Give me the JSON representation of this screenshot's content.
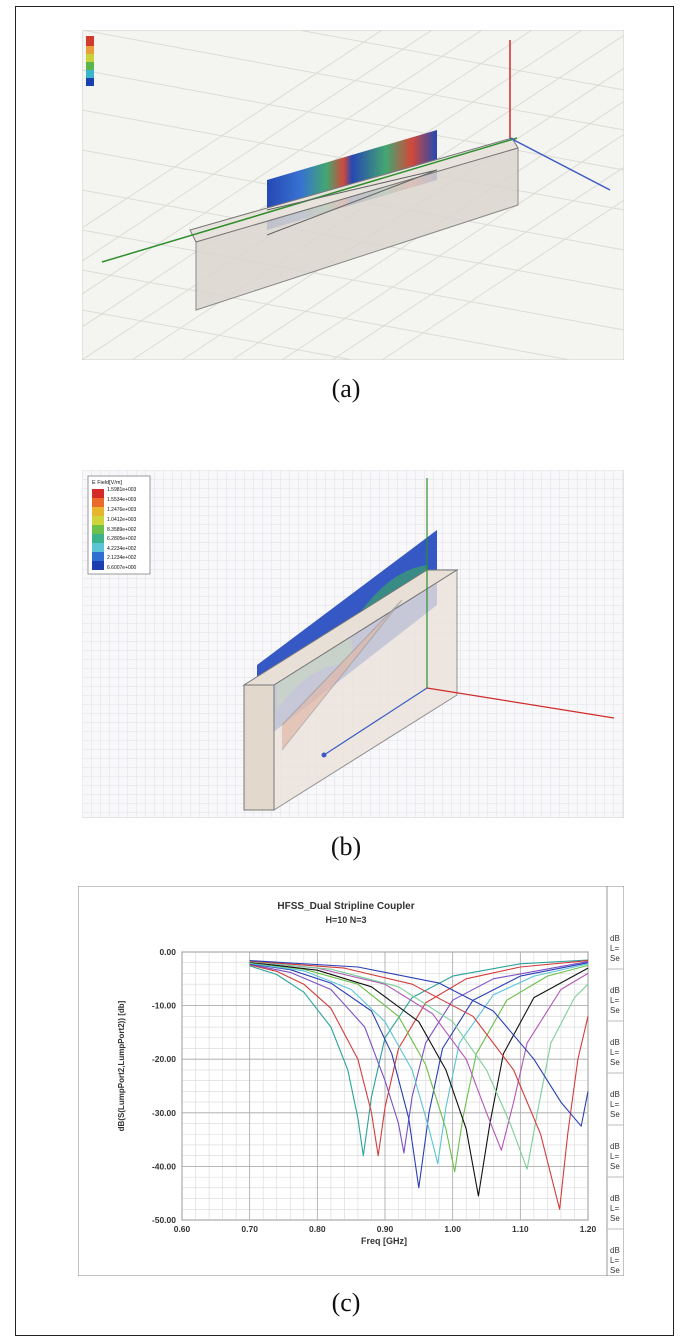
{
  "captions": [
    "(a)",
    "(b)",
    "(c)"
  ],
  "panel_b": {
    "legend_title": "E Field[V/m]",
    "legend_values": [
      "1.5981e+003",
      "1.5534e+003",
      "1.2476e+003",
      "1.0412e+003",
      "8.3589e+002",
      "6.2805e+002",
      "4.2234e+002",
      "2.1234e+002",
      "6.6007e+000"
    ]
  },
  "chart_data": {
    "type": "line",
    "title": "HFSS_Dual Stripline Coupler",
    "subtitle": "H=10 N=3",
    "xlabel": "Freq [GHz]",
    "ylabel": "dB(S(LumpPort2,LumpPort2)) [db]",
    "xlim": [
      0.6,
      1.2
    ],
    "ylim": [
      -50,
      0
    ],
    "x_ticks": [
      "0.60",
      "0.70",
      "0.80",
      "0.90",
      "1.00",
      "1.10",
      "1.20"
    ],
    "y_ticks": [
      "0.00",
      "-10.00",
      "-20.00",
      "-30.00",
      "-40.00",
      "-50.00"
    ],
    "grid": true,
    "legend_tabs": [
      "dB",
      "L=",
      "Se"
    ],
    "series": [
      {
        "color": "#2aa39a",
        "values": [
          [
            0.7,
            -2.6
          ],
          [
            0.74,
            -4.2
          ],
          [
            0.78,
            -7.5
          ],
          [
            0.82,
            -14.0
          ],
          [
            0.845,
            -22.0
          ],
          [
            0.86,
            -31.0
          ],
          [
            0.868,
            -38.0
          ],
          [
            0.88,
            -27.0
          ],
          [
            0.9,
            -16.0
          ],
          [
            0.94,
            -8.5
          ],
          [
            1.0,
            -4.5
          ],
          [
            1.1,
            -2.2
          ],
          [
            1.2,
            -1.5
          ]
        ]
      },
      {
        "color": "#d43b3b",
        "values": [
          [
            0.7,
            -2.4
          ],
          [
            0.74,
            -3.6
          ],
          [
            0.78,
            -6.0
          ],
          [
            0.82,
            -10.5
          ],
          [
            0.86,
            -20.0
          ],
          [
            0.88,
            -30.0
          ],
          [
            0.89,
            -38.0
          ],
          [
            0.9,
            -29.0
          ],
          [
            0.92,
            -18.0
          ],
          [
            0.96,
            -9.5
          ],
          [
            1.02,
            -5.0
          ],
          [
            1.1,
            -2.8
          ],
          [
            1.2,
            -1.6
          ]
        ]
      },
      {
        "color": "#7a4fc4",
        "values": [
          [
            0.7,
            -2.3
          ],
          [
            0.76,
            -3.8
          ],
          [
            0.82,
            -7.0
          ],
          [
            0.87,
            -14.0
          ],
          [
            0.9,
            -24.0
          ],
          [
            0.92,
            -32.0
          ],
          [
            0.928,
            -37.5
          ],
          [
            0.94,
            -27.0
          ],
          [
            0.96,
            -17.0
          ],
          [
            1.0,
            -9.0
          ],
          [
            1.06,
            -5.0
          ],
          [
            1.2,
            -1.8
          ]
        ]
      },
      {
        "color": "#2b3fb5",
        "values": [
          [
            0.7,
            -2.2
          ],
          [
            0.76,
            -3.3
          ],
          [
            0.82,
            -5.8
          ],
          [
            0.88,
            -11.0
          ],
          [
            0.91,
            -19.0
          ],
          [
            0.935,
            -31.0
          ],
          [
            0.95,
            -44.0
          ],
          [
            0.965,
            -30.0
          ],
          [
            0.985,
            -18.0
          ],
          [
            1.03,
            -9.0
          ],
          [
            1.1,
            -4.5
          ],
          [
            1.2,
            -2.0
          ]
        ]
      },
      {
        "color": "#5bc4d6",
        "values": [
          [
            0.7,
            -2.1
          ],
          [
            0.78,
            -3.5
          ],
          [
            0.85,
            -7.0
          ],
          [
            0.9,
            -13.0
          ],
          [
            0.94,
            -22.0
          ],
          [
            0.965,
            -33.0
          ],
          [
            0.978,
            -39.5
          ],
          [
            0.99,
            -29.0
          ],
          [
            1.01,
            -17.0
          ],
          [
            1.06,
            -8.0
          ],
          [
            1.12,
            -4.5
          ],
          [
            1.2,
            -2.2
          ]
        ]
      },
      {
        "color": "#6cbf4a",
        "values": [
          [
            0.7,
            -2.0
          ],
          [
            0.78,
            -3.2
          ],
          [
            0.86,
            -6.0
          ],
          [
            0.92,
            -12.0
          ],
          [
            0.96,
            -21.0
          ],
          [
            0.99,
            -33.0
          ],
          [
            1.003,
            -41.0
          ],
          [
            1.015,
            -31.0
          ],
          [
            1.035,
            -19.0
          ],
          [
            1.08,
            -9.0
          ],
          [
            1.14,
            -4.5
          ],
          [
            1.2,
            -2.5
          ]
        ]
      },
      {
        "color": "#111111",
        "values": [
          [
            0.7,
            -1.9
          ],
          [
            0.8,
            -3.4
          ],
          [
            0.88,
            -6.5
          ],
          [
            0.95,
            -13.0
          ],
          [
            0.99,
            -22.0
          ],
          [
            1.02,
            -33.0
          ],
          [
            1.038,
            -45.5
          ],
          [
            1.055,
            -32.0
          ],
          [
            1.075,
            -19.0
          ],
          [
            1.12,
            -8.5
          ],
          [
            1.2,
            -3.0
          ]
        ]
      },
      {
        "color": "#b356b8",
        "values": [
          [
            0.7,
            -1.8
          ],
          [
            0.8,
            -3.0
          ],
          [
            0.9,
            -6.0
          ],
          [
            0.97,
            -11.5
          ],
          [
            1.02,
            -20.0
          ],
          [
            1.05,
            -30.0
          ],
          [
            1.072,
            -37.0
          ],
          [
            1.09,
            -28.0
          ],
          [
            1.11,
            -17.0
          ],
          [
            1.16,
            -7.0
          ],
          [
            1.2,
            -4.0
          ]
        ]
      },
      {
        "color": "#7dcf9a",
        "values": [
          [
            0.7,
            -1.8
          ],
          [
            0.82,
            -3.2
          ],
          [
            0.92,
            -6.5
          ],
          [
            1.0,
            -13.0
          ],
          [
            1.05,
            -22.0
          ],
          [
            1.085,
            -32.0
          ],
          [
            1.11,
            -40.5
          ],
          [
            1.125,
            -30.0
          ],
          [
            1.145,
            -17.0
          ],
          [
            1.18,
            -8.5
          ],
          [
            1.2,
            -6.0
          ]
        ]
      },
      {
        "color": "#d43b3b",
        "values": [
          [
            0.7,
            -1.7
          ],
          [
            0.84,
            -3.0
          ],
          [
            0.94,
            -6.0
          ],
          [
            1.03,
            -12.0
          ],
          [
            1.09,
            -22.0
          ],
          [
            1.13,
            -34.0
          ],
          [
            1.158,
            -48.0
          ],
          [
            1.17,
            -34.0
          ],
          [
            1.185,
            -20.0
          ],
          [
            1.2,
            -12.0
          ]
        ]
      },
      {
        "color": "#2b3fb5",
        "values": [
          [
            0.7,
            -1.6
          ],
          [
            0.86,
            -2.8
          ],
          [
            0.98,
            -5.8
          ],
          [
            1.06,
            -11.0
          ],
          [
            1.12,
            -20.0
          ],
          [
            1.16,
            -28.0
          ],
          [
            1.19,
            -32.5
          ],
          [
            1.2,
            -26.0
          ]
        ]
      }
    ]
  }
}
